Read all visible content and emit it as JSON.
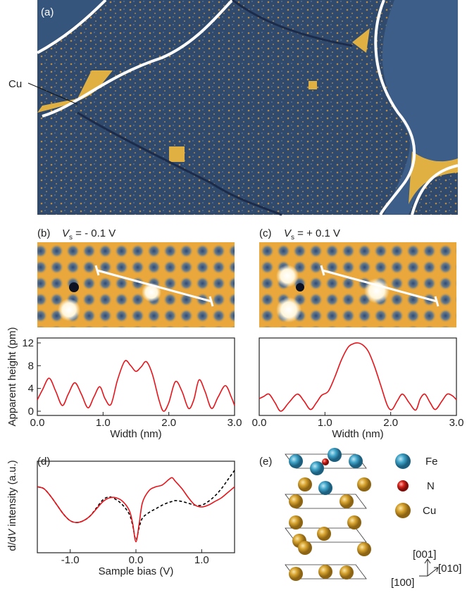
{
  "chart_data": [
    {
      "type": "line",
      "ylabel": "Apparent height (pm)",
      "xlabel": "Width (nm)",
      "x": [
        0,
        0.08,
        0.18,
        0.28,
        0.38,
        0.47,
        0.57,
        0.67,
        0.77,
        0.86,
        0.95,
        1.03,
        1.12,
        1.22,
        1.33,
        1.42,
        1.5,
        1.58,
        1.66,
        1.75,
        1.85,
        1.92,
        2.0,
        2.1,
        2.2,
        2.3,
        2.38,
        2.46,
        2.55,
        2.65,
        2.75,
        2.86,
        2.95,
        3.0
      ],
      "values": [
        2,
        3.8,
        5.8,
        3.5,
        1,
        3,
        5,
        3,
        0.6,
        2.5,
        4.3,
        2.2,
        1.2,
        5.5,
        8.8,
        8,
        7,
        7.8,
        8.7,
        6.5,
        2,
        0,
        1.5,
        5.2,
        3.5,
        0.5,
        2,
        5.5,
        3.5,
        0.5,
        2.5,
        4.5,
        2.5,
        1
      ],
      "color": "#e8141b",
      "xlim": [
        0,
        3
      ],
      "ylim": [
        0,
        12
      ],
      "xticks": [
        {
          "value": 0,
          "label": "0.0"
        },
        {
          "value": 1,
          "label": "1.0"
        },
        {
          "value": 2,
          "label": "2.0"
        },
        {
          "value": 3,
          "label": "3.0"
        }
      ],
      "yticks": [
        0,
        4,
        8,
        12
      ]
    },
    {
      "type": "line",
      "xlabel": "Width (nm)",
      "x": [
        0,
        0.07,
        0.15,
        0.24,
        0.33,
        0.45,
        0.58,
        0.68,
        0.78,
        0.87,
        0.95,
        1.05,
        1.15,
        1.25,
        1.35,
        1.42,
        1.5,
        1.58,
        1.66,
        1.75,
        1.85,
        1.95,
        2.02,
        2.1,
        2.18,
        2.28,
        2.38,
        2.45,
        2.52,
        2.6,
        2.68,
        2.78,
        2.86,
        2.94,
        3.0
      ],
      "values": [
        2.2,
        2.6,
        3,
        1.5,
        0,
        1.5,
        3,
        1.8,
        0.3,
        1.5,
        2.8,
        3.5,
        6,
        9,
        11.2,
        11.8,
        12,
        11.6,
        10.5,
        8,
        4.5,
        1,
        0.3,
        1.8,
        3,
        1.5,
        0.2,
        2.2,
        3,
        1.5,
        0.3,
        1.8,
        3,
        2.7,
        2
      ],
      "color": "#e8141b",
      "xlim": [
        0,
        3
      ],
      "ylim": [
        0,
        12
      ],
      "xticks": [
        {
          "value": 0,
          "label": "0.0"
        },
        {
          "value": 1,
          "label": "1.0"
        },
        {
          "value": 2,
          "label": "2.0"
        },
        {
          "value": 3,
          "label": "3.0"
        }
      ]
    },
    {
      "type": "line",
      "ylabel": [
        "d/d",
        "V",
        " intensity (a.u.)"
      ],
      "xlabel": "Sample bias (V)",
      "x": [
        -1.5,
        -1.4,
        -1.3,
        -1.2,
        -1.1,
        -1.0,
        -0.9,
        -0.8,
        -0.7,
        -0.6,
        -0.5,
        -0.4,
        -0.3,
        -0.2,
        -0.1,
        -0.05,
        0,
        0.05,
        0.1,
        0.2,
        0.3,
        0.4,
        0.5,
        0.55,
        0.6,
        0.7,
        0.8,
        0.9,
        1.0,
        1.1,
        1.2,
        1.3,
        1.4,
        1.5
      ],
      "series": [
        {
          "color": "#e8141b",
          "dashed": false,
          "values": [
            0.72,
            0.7,
            0.62,
            0.52,
            0.42,
            0.35,
            0.33,
            0.35,
            0.4,
            0.48,
            0.56,
            0.6,
            0.6,
            0.56,
            0.46,
            0.32,
            0.12,
            0.32,
            0.55,
            0.68,
            0.72,
            0.74,
            0.8,
            0.82,
            0.78,
            0.7,
            0.6,
            0.52,
            0.5,
            0.52,
            0.56,
            0.6,
            0.66,
            0.72
          ]
        },
        {
          "color": "#000000",
          "dashed": true,
          "values": [
            0.72,
            0.7,
            0.62,
            0.52,
            0.42,
            0.35,
            0.33,
            0.35,
            0.4,
            0.49,
            0.58,
            0.61,
            0.58,
            0.52,
            0.42,
            0.3,
            0.14,
            0.28,
            0.38,
            0.44,
            0.48,
            0.52,
            0.55,
            0.56,
            0.57,
            0.56,
            0.54,
            0.52,
            0.52,
            0.56,
            0.62,
            0.7,
            0.8,
            0.9
          ]
        }
      ],
      "xlim": [
        -1.5,
        1.5
      ],
      "ylim": [
        0,
        1
      ],
      "xticks": [
        {
          "value": -1,
          "label": "-1.0"
        },
        {
          "value": 0,
          "label": "0.0"
        },
        {
          "value": 1,
          "label": "1.0"
        }
      ]
    }
  ],
  "figure": {
    "panel_labels": [
      "(a)",
      "(b)",
      "(c)",
      "(d)",
      "(e)"
    ],
    "cu_label": "Cu",
    "bias_b": {
      "symbol": "V",
      "subscript": "s",
      "value": " = - 0.1 V"
    },
    "bias_c": {
      "symbol": "V",
      "subscript": "s",
      "value": " = + 0.1 V"
    },
    "legend": [
      "Fe",
      "N",
      "Cu"
    ],
    "directions": [
      "[001]",
      "[010]",
      "[100]"
    ]
  }
}
